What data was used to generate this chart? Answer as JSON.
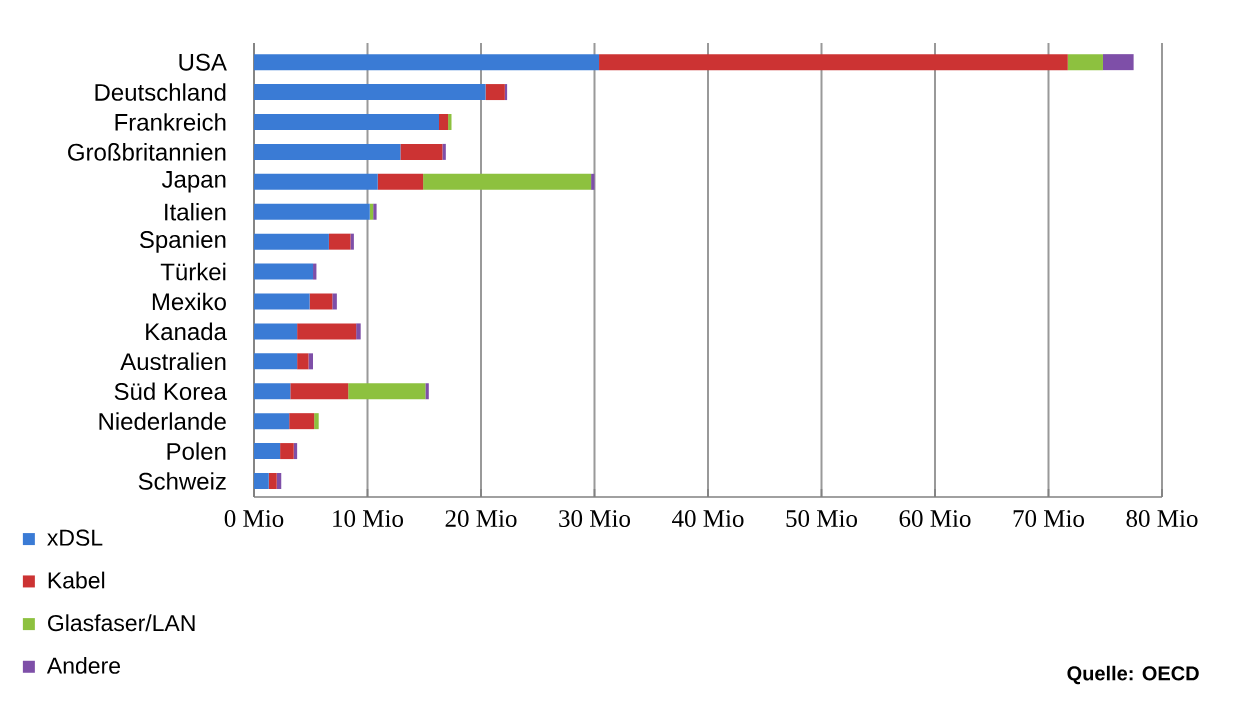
{
  "chart_data": {
    "type": "bar",
    "orientation": "horizontal",
    "stacked": true,
    "categories": [
      "USA",
      "Deutschland",
      "Frankreich",
      "Großbritannien",
      "Japan",
      "Italien",
      "Spanien",
      "Türkei",
      "Mexiko",
      "Kanada",
      "Australien",
      "Süd Korea",
      "Niederlande",
      "Polen",
      "Schweiz"
    ],
    "series": [
      {
        "name": "xDSL",
        "color": "#3a7bd5",
        "values": [
          30.4,
          20.4,
          16.3,
          12.9,
          10.9,
          10.2,
          6.6,
          5.2,
          4.9,
          3.8,
          3.8,
          3.2,
          3.1,
          2.3,
          1.3
        ]
      },
      {
        "name": "Kabel",
        "color": "#cc3333",
        "values": [
          41.3,
          1.7,
          0.8,
          3.7,
          4.0,
          null,
          1.9,
          null,
          2.0,
          5.2,
          1.0,
          5.1,
          2.2,
          1.2,
          0.7
        ]
      },
      {
        "name": "Glasfaser/LAN",
        "color": "#8dc13f",
        "values": [
          3.1,
          null,
          0.3,
          null,
          14.8,
          0.3,
          null,
          null,
          null,
          null,
          null,
          6.8,
          0.4,
          null,
          null
        ]
      },
      {
        "name": "Andere",
        "color": "#7e4fa8",
        "values": [
          2.7,
          0.2,
          null,
          0.3,
          0.3,
          0.3,
          0.3,
          0.3,
          0.4,
          0.4,
          0.4,
          0.3,
          null,
          0.3,
          0.4
        ]
      }
    ],
    "xlim": [
      0,
      80
    ],
    "xticks": [
      {
        "value": 0,
        "label": "0 Mio"
      },
      {
        "value": 10,
        "label": "10 Mio"
      },
      {
        "value": 20,
        "label": "20 Mio"
      },
      {
        "value": 30,
        "label": "30 Mio"
      },
      {
        "value": 40,
        "label": "40 Mio"
      },
      {
        "value": 50,
        "label": "50 Mio"
      },
      {
        "value": 60,
        "label": "60 Mio"
      },
      {
        "value": 70,
        "label": "70 Mio"
      },
      {
        "value": 80,
        "label": "80 Mio"
      }
    ],
    "grid": "x",
    "legend": "bottom left",
    "annotations": [
      "Quelle: OECD"
    ]
  }
}
